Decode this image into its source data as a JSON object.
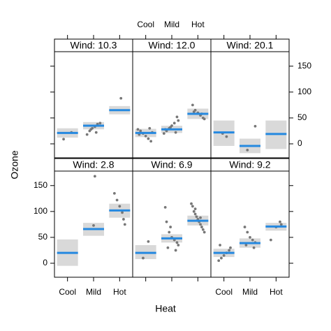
{
  "chart_data": {
    "type": "lattice",
    "xlabel": "Heat",
    "ylabel": "Ozone",
    "categories": [
      "Cool",
      "Mild",
      "Hot"
    ],
    "xlim": [
      0.5,
      3.5
    ],
    "ylim": [
      -27,
      178
    ],
    "yticks": [
      0,
      50,
      100,
      150
    ],
    "fit_color": "#2589e0",
    "band_color": "#d9d9d9",
    "point_color": "#777777",
    "panels": [
      {
        "title": "Wind: 10.3",
        "fit": [
          21,
          35,
          65
        ],
        "lower": [
          12,
          28,
          57
        ],
        "upper": [
          30,
          42,
          73
        ],
        "points_x": [
          0.85,
          1.15,
          1.75,
          1.85,
          1.95,
          2.05,
          2.15,
          2.25,
          1.9,
          2.1,
          3.05
        ],
        "points_y": [
          9,
          22,
          18,
          25,
          30,
          33,
          38,
          40,
          28,
          22,
          88
        ]
      },
      {
        "title": "Wind: 12.0",
        "fit": [
          21,
          28,
          58
        ],
        "lower": [
          13,
          21,
          48
        ],
        "upper": [
          29,
          35,
          68
        ],
        "points_x": [
          0.7,
          0.8,
          0.9,
          1.0,
          1.1,
          1.2,
          1.25,
          0.75,
          1.15,
          1.7,
          1.8,
          1.9,
          2.0,
          2.1,
          2.2,
          2.25,
          1.75,
          2.15,
          1.95,
          2.8,
          2.9,
          3.0,
          3.1,
          3.2,
          3.25,
          2.85,
          3.15
        ],
        "points_y": [
          28,
          25,
          20,
          15,
          10,
          5,
          22,
          18,
          30,
          20,
          25,
          30,
          35,
          40,
          52,
          45,
          28,
          22,
          32,
          75,
          65,
          60,
          55,
          50,
          48,
          62,
          58
        ]
      },
      {
        "title": "Wind: 20.1",
        "fit": [
          22,
          -4,
          19
        ],
        "lower": [
          -4,
          -18,
          -10
        ],
        "upper": [
          45,
          10,
          45
        ],
        "points_x": [
          0.95,
          1.1,
          1.9,
          2.2
        ],
        "points_y": [
          20,
          14,
          -12,
          34
        ]
      },
      {
        "title": "Wind: 2.8",
        "fit": [
          20,
          66,
          102
        ],
        "lower": [
          -5,
          53,
          88
        ],
        "upper": [
          46,
          78,
          115
        ],
        "points_x": [
          2.0,
          2.05,
          2.8,
          2.9,
          3.0,
          3.1,
          3.15,
          3.2
        ],
        "points_y": [
          73,
          168,
          135,
          122,
          110,
          98,
          85,
          75
        ]
      },
      {
        "title": "Wind: 6.9",
        "fit": [
          20,
          48,
          82
        ],
        "lower": [
          8,
          40,
          73
        ],
        "upper": [
          35,
          56,
          92
        ],
        "points_x": [
          1.1,
          0.9,
          1.75,
          1.8,
          1.9,
          2.0,
          2.1,
          2.2,
          2.25,
          1.85,
          2.15,
          1.95,
          2.75,
          2.8,
          2.85,
          2.9,
          2.95,
          3.0,
          3.05,
          3.1,
          3.15,
          3.2,
          3.25,
          2.9,
          3.1
        ],
        "points_y": [
          42,
          10,
          108,
          80,
          60,
          50,
          45,
          40,
          35,
          30,
          25,
          70,
          115,
          110,
          100,
          95,
          90,
          85,
          80,
          75,
          70,
          65,
          60,
          105,
          88
        ]
      },
      {
        "title": "Wind: 9.2",
        "fit": [
          20,
          39,
          71
        ],
        "lower": [
          12,
          30,
          63
        ],
        "upper": [
          28,
          48,
          78
        ],
        "points_x": [
          0.8,
          0.9,
          1.0,
          1.1,
          1.2,
          1.25,
          0.85,
          1.8,
          1.9,
          2.0,
          2.1,
          2.2,
          1.85,
          2.15,
          2.8,
          3.0,
          3.15,
          3.2
        ],
        "points_y": [
          5,
          10,
          15,
          20,
          25,
          30,
          35,
          70,
          60,
          50,
          45,
          40,
          35,
          30,
          45,
          70,
          80,
          75
        ]
      }
    ]
  }
}
